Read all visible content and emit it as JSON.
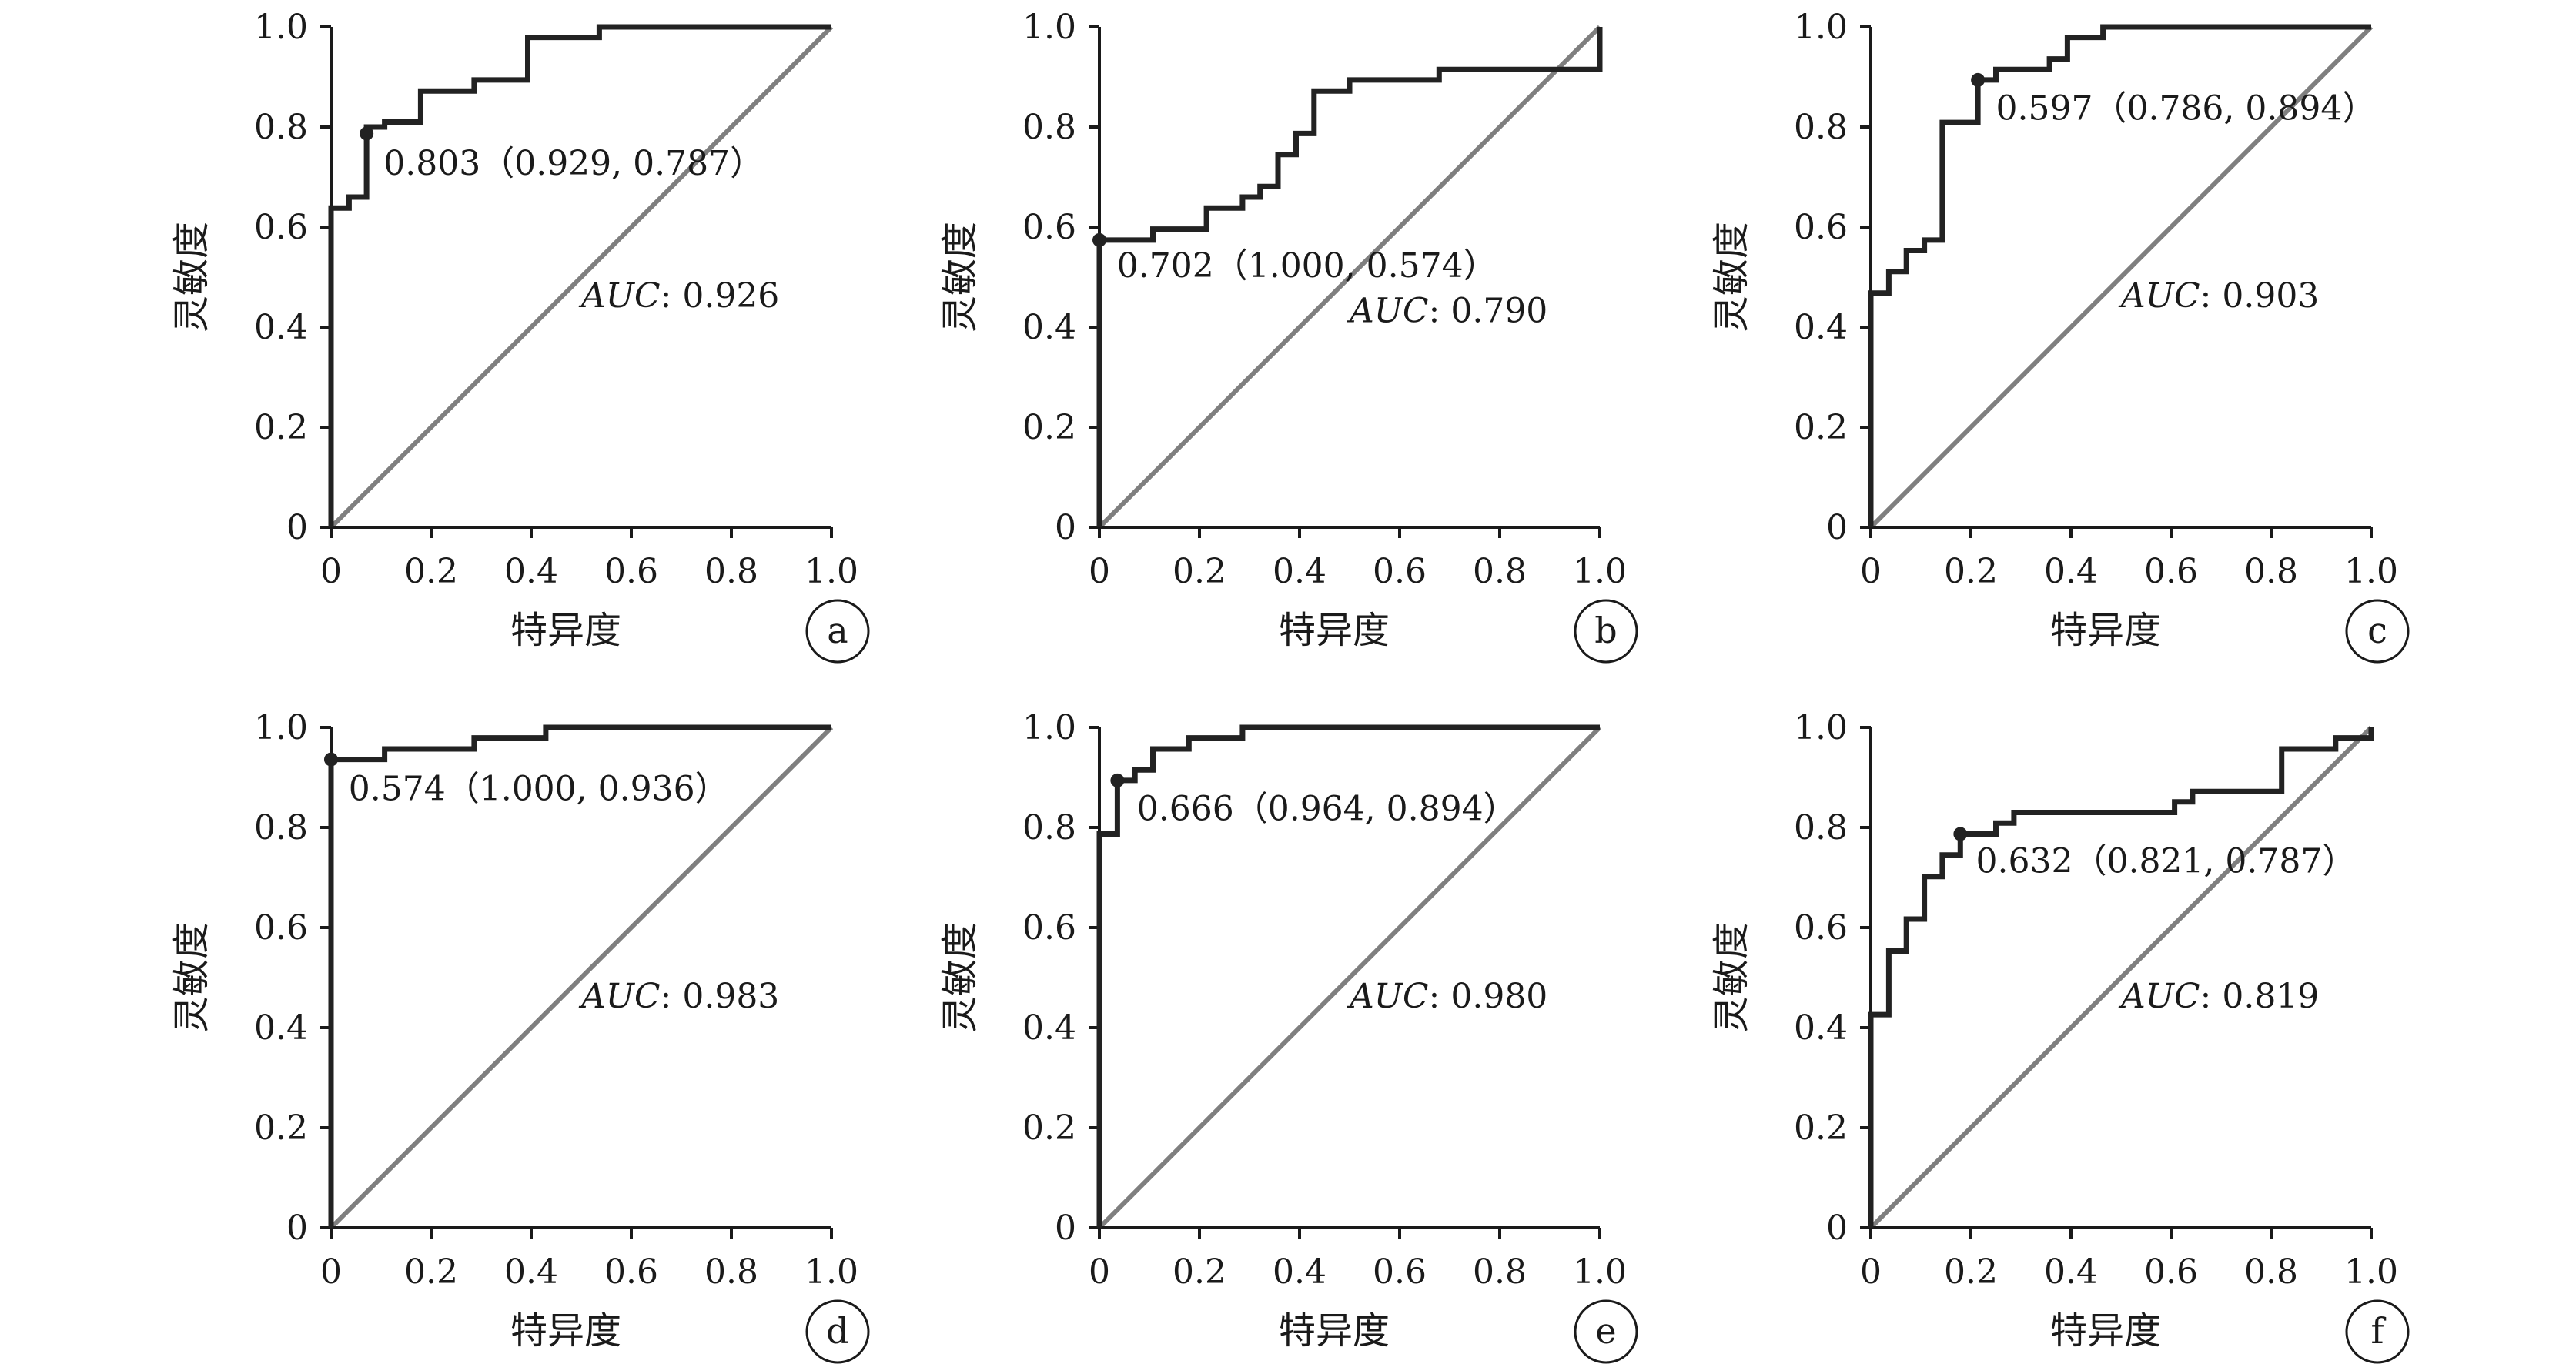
{
  "colors": {
    "roc": "#222222",
    "diagonal": "#7f7f7f",
    "axis": "#1a1a1a"
  },
  "chart_data": [
    {
      "type": "line",
      "panel": "a",
      "xlabel": "特异度",
      "ylabel": "灵敏度",
      "xlim": [
        0,
        1
      ],
      "ylim": [
        0,
        1
      ],
      "xticks": [
        "0",
        "0.2",
        "0.4",
        "0.6",
        "0.8",
        "1.0"
      ],
      "yticks": [
        "0",
        "0.2",
        "0.4",
        "0.6",
        "0.8",
        "1.0"
      ],
      "auc_key": "AUC",
      "auc_value": ": 0.926",
      "cutoff_label": "0.803（0.929, 0.787）",
      "cutoff_point": [
        0.071,
        0.787
      ],
      "roc": [
        [
          0,
          0
        ],
        [
          0,
          0.638
        ],
        [
          0.036,
          0.638
        ],
        [
          0.036,
          0.66
        ],
        [
          0.071,
          0.66
        ],
        [
          0.071,
          0.787
        ],
        [
          0.071,
          0.8
        ],
        [
          0.107,
          0.8
        ],
        [
          0.107,
          0.81
        ],
        [
          0.179,
          0.81
        ],
        [
          0.179,
          0.872
        ],
        [
          0.286,
          0.872
        ],
        [
          0.286,
          0.894
        ],
        [
          0.393,
          0.894
        ],
        [
          0.393,
          0.979
        ],
        [
          0.536,
          0.979
        ],
        [
          0.536,
          1.0
        ],
        [
          1.0,
          1.0
        ]
      ]
    },
    {
      "type": "line",
      "panel": "b",
      "xlabel": "特异度",
      "ylabel": "灵敏度",
      "xlim": [
        0,
        1
      ],
      "ylim": [
        0,
        1
      ],
      "xticks": [
        "0",
        "0.2",
        "0.4",
        "0.6",
        "0.8",
        "1.0"
      ],
      "yticks": [
        "0",
        "0.2",
        "0.4",
        "0.6",
        "0.8",
        "1.0"
      ],
      "auc_key": "AUC",
      "auc_value": ": 0.790",
      "cutoff_label": "0.702（1.000, 0.574）",
      "cutoff_point": [
        0,
        0.574
      ],
      "roc": [
        [
          0,
          0
        ],
        [
          0,
          0.574
        ],
        [
          0.107,
          0.574
        ],
        [
          0.107,
          0.596
        ],
        [
          0.214,
          0.596
        ],
        [
          0.214,
          0.638
        ],
        [
          0.286,
          0.638
        ],
        [
          0.286,
          0.66
        ],
        [
          0.321,
          0.66
        ],
        [
          0.321,
          0.681
        ],
        [
          0.357,
          0.681
        ],
        [
          0.357,
          0.745
        ],
        [
          0.393,
          0.745
        ],
        [
          0.393,
          0.787
        ],
        [
          0.429,
          0.787
        ],
        [
          0.429,
          0.872
        ],
        [
          0.5,
          0.872
        ],
        [
          0.5,
          0.894
        ],
        [
          0.679,
          0.894
        ],
        [
          0.679,
          0.915
        ],
        [
          1.0,
          0.915
        ],
        [
          1.0,
          1.0
        ]
      ]
    },
    {
      "type": "line",
      "panel": "c",
      "xlabel": "特异度",
      "ylabel": "灵敏度",
      "xlim": [
        0,
        1
      ],
      "ylim": [
        0,
        1
      ],
      "xticks": [
        "0",
        "0.2",
        "0.4",
        "0.6",
        "0.8",
        "1.0"
      ],
      "yticks": [
        "0",
        "0.2",
        "0.4",
        "0.6",
        "0.8",
        "1.0"
      ],
      "auc_key": "AUC",
      "auc_value": ": 0.903",
      "cutoff_label": "0.597（0.786, 0.894）",
      "cutoff_point": [
        0.214,
        0.894
      ],
      "roc": [
        [
          0,
          0
        ],
        [
          0,
          0.468
        ],
        [
          0.036,
          0.468
        ],
        [
          0.036,
          0.511
        ],
        [
          0.071,
          0.511
        ],
        [
          0.071,
          0.553
        ],
        [
          0.107,
          0.553
        ],
        [
          0.107,
          0.574
        ],
        [
          0.143,
          0.574
        ],
        [
          0.143,
          0.809
        ],
        [
          0.214,
          0.809
        ],
        [
          0.214,
          0.894
        ],
        [
          0.25,
          0.894
        ],
        [
          0.25,
          0.915
        ],
        [
          0.357,
          0.915
        ],
        [
          0.357,
          0.936
        ],
        [
          0.393,
          0.936
        ],
        [
          0.393,
          0.979
        ],
        [
          0.464,
          0.979
        ],
        [
          0.464,
          1.0
        ],
        [
          1.0,
          1.0
        ]
      ]
    },
    {
      "type": "line",
      "panel": "d",
      "xlabel": "特异度",
      "ylabel": "灵敏度",
      "xlim": [
        0,
        1
      ],
      "ylim": [
        0,
        1
      ],
      "xticks": [
        "0",
        "0.2",
        "0.4",
        "0.6",
        "0.8",
        "1.0"
      ],
      "yticks": [
        "0",
        "0.2",
        "0.4",
        "0.6",
        "0.8",
        "1.0"
      ],
      "auc_key": "AUC",
      "auc_value": ": 0.983",
      "cutoff_label": "0.574（1.000, 0.936）",
      "cutoff_point": [
        0,
        0.936
      ],
      "roc": [
        [
          0,
          0
        ],
        [
          0,
          0.936
        ],
        [
          0.107,
          0.936
        ],
        [
          0.107,
          0.957
        ],
        [
          0.286,
          0.957
        ],
        [
          0.286,
          0.979
        ],
        [
          0.429,
          0.979
        ],
        [
          0.429,
          1.0
        ],
        [
          1.0,
          1.0
        ]
      ]
    },
    {
      "type": "line",
      "panel": "e",
      "xlabel": "特异度",
      "ylabel": "灵敏度",
      "xlim": [
        0,
        1
      ],
      "ylim": [
        0,
        1
      ],
      "xticks": [
        "0",
        "0.2",
        "0.4",
        "0.6",
        "0.8",
        "1.0"
      ],
      "yticks": [
        "0",
        "0.2",
        "0.4",
        "0.6",
        "0.8",
        "1.0"
      ],
      "auc_key": "AUC",
      "auc_value": ": 0.980",
      "cutoff_label": "0.666（0.964, 0.894）",
      "cutoff_point": [
        0.036,
        0.894
      ],
      "roc": [
        [
          0,
          0
        ],
        [
          0,
          0.787
        ],
        [
          0.036,
          0.787
        ],
        [
          0.036,
          0.894
        ],
        [
          0.071,
          0.894
        ],
        [
          0.071,
          0.915
        ],
        [
          0.107,
          0.915
        ],
        [
          0.107,
          0.957
        ],
        [
          0.179,
          0.957
        ],
        [
          0.179,
          0.979
        ],
        [
          0.286,
          0.979
        ],
        [
          0.286,
          1.0
        ],
        [
          1.0,
          1.0
        ]
      ]
    },
    {
      "type": "line",
      "panel": "f",
      "xlabel": "特异度",
      "ylabel": "灵敏度",
      "xlim": [
        0,
        1
      ],
      "ylim": [
        0,
        1
      ],
      "xticks": [
        "0",
        "0.2",
        "0.4",
        "0.6",
        "0.8",
        "1.0"
      ],
      "yticks": [
        "0",
        "0.2",
        "0.4",
        "0.6",
        "0.8",
        "1.0"
      ],
      "auc_key": "AUC",
      "auc_value": ": 0.819",
      "cutoff_label": "0.632（0.821, 0.787）",
      "cutoff_point": [
        0.179,
        0.787
      ],
      "roc": [
        [
          0,
          0
        ],
        [
          0,
          0.426
        ],
        [
          0.036,
          0.426
        ],
        [
          0.036,
          0.553
        ],
        [
          0.071,
          0.553
        ],
        [
          0.071,
          0.617
        ],
        [
          0.107,
          0.617
        ],
        [
          0.107,
          0.702
        ],
        [
          0.143,
          0.702
        ],
        [
          0.143,
          0.745
        ],
        [
          0.179,
          0.745
        ],
        [
          0.179,
          0.787
        ],
        [
          0.25,
          0.787
        ],
        [
          0.25,
          0.809
        ],
        [
          0.286,
          0.809
        ],
        [
          0.286,
          0.83
        ],
        [
          0.607,
          0.83
        ],
        [
          0.607,
          0.851
        ],
        [
          0.643,
          0.851
        ],
        [
          0.643,
          0.872
        ],
        [
          0.821,
          0.872
        ],
        [
          0.821,
          0.957
        ],
        [
          0.929,
          0.957
        ],
        [
          0.929,
          0.979
        ],
        [
          1.0,
          0.979
        ],
        [
          1.0,
          1.0
        ]
      ]
    }
  ]
}
